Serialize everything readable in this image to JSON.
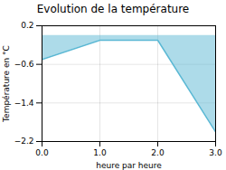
{
  "chart_data": {
    "type": "area",
    "title": "Evolution de la température",
    "xlabel": "heure par heure",
    "ylabel": "Température en °C",
    "x": [
      0,
      1,
      2,
      3
    ],
    "values": [
      -0.5,
      -0.1,
      -0.1,
      -2.0
    ],
    "color": "#5bb8d4",
    "xlim": [
      0,
      3
    ],
    "ylim": [
      -2.2,
      0.2
    ],
    "xticks": [
      0,
      1,
      2,
      3
    ],
    "yticks": [
      0.2,
      -0.6,
      -1.4,
      -2.2
    ],
    "grid": true
  }
}
